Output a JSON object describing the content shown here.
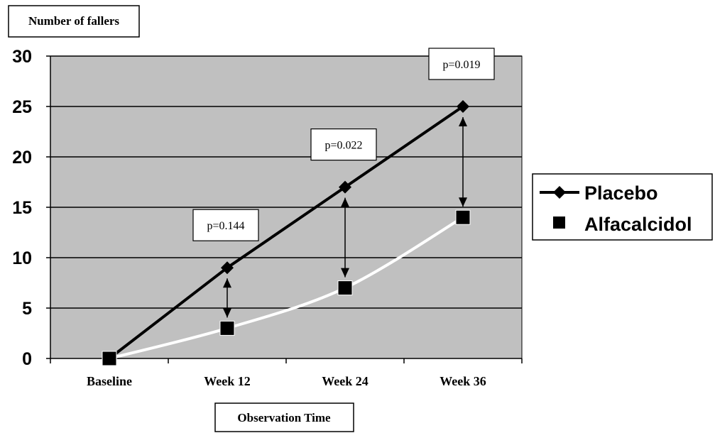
{
  "chart_data": {
    "type": "line",
    "ylabel": "Number of fallers",
    "xlabel": "Observation Time",
    "categories": [
      "Baseline",
      "Week 12",
      "Week 24",
      "Week 36"
    ],
    "ylim": [
      0,
      30
    ],
    "yticks": [
      "0",
      "5",
      "10",
      "15",
      "20",
      "25",
      "30"
    ],
    "grid": true,
    "legend_position": "right",
    "series": [
      {
        "name": "Placebo",
        "values": [
          0,
          9,
          17,
          25
        ],
        "marker": "diamond",
        "color": "#000000"
      },
      {
        "name": "Alfacalcidol",
        "values": [
          0,
          3,
          7,
          14
        ],
        "marker": "square",
        "color": "#ffffff"
      }
    ],
    "annotations": [
      {
        "text": "p=0.144",
        "category": "Week 12"
      },
      {
        "text": "p=0.022",
        "category": "Week 24"
      },
      {
        "text": "p=0.019",
        "category": "Week 36"
      }
    ],
    "colors": {
      "plot_background": "#c0c0c0",
      "grid": "#000000"
    }
  }
}
